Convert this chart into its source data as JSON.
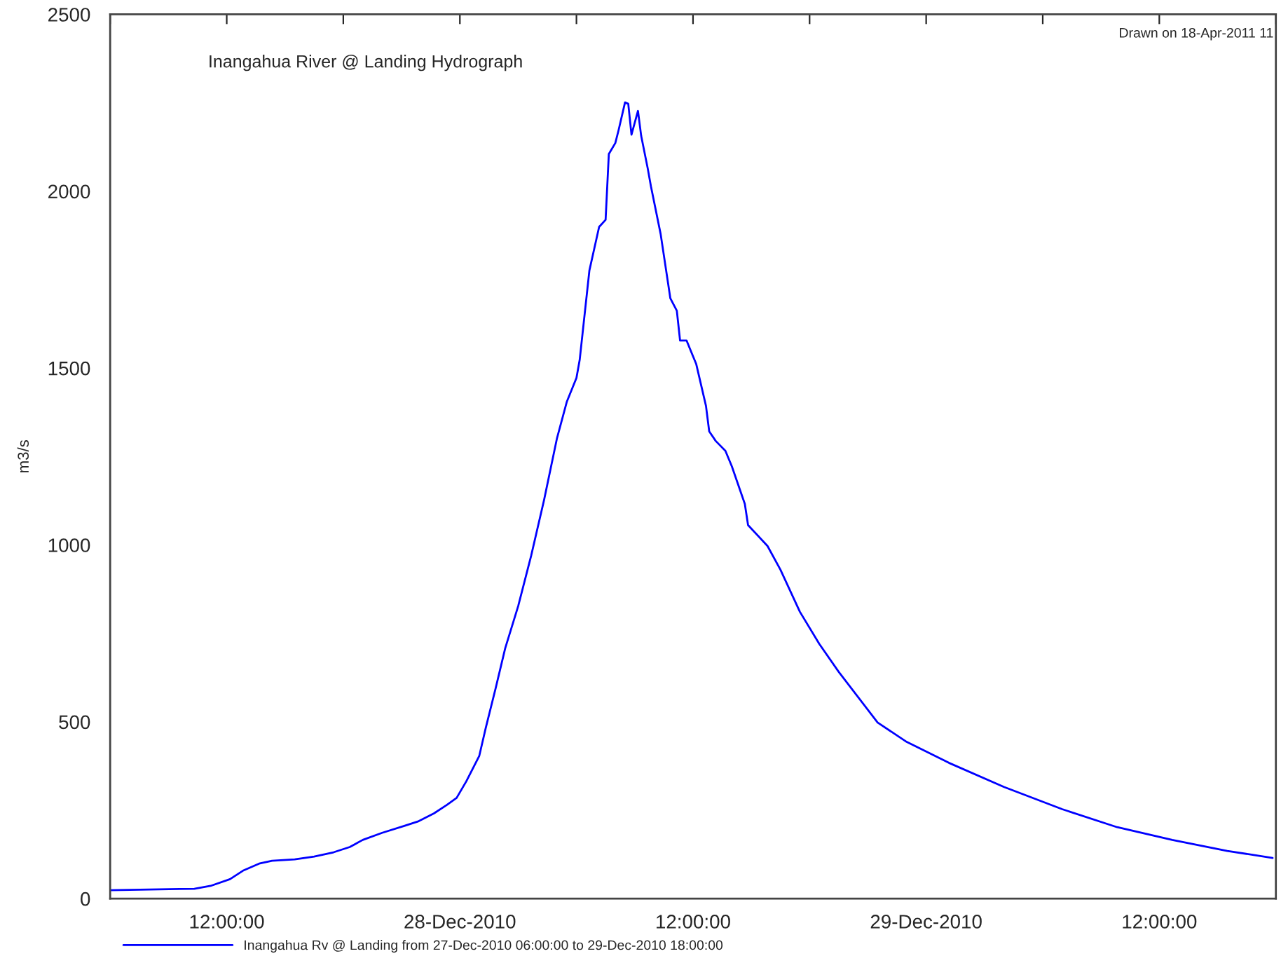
{
  "chart_data": {
    "type": "line",
    "title": "Inangahua River @ Landing Hydrograph",
    "ylabel": "m3/s",
    "annotations": [
      "Drawn on 18-Apr-2011 11"
    ],
    "x": [
      "2010-12-27T06:00",
      "2010-12-27T10:20",
      "2010-12-27T11:10",
      "2010-12-27T12:10",
      "2010-12-27T12:50",
      "2010-12-27T13:40",
      "2010-12-27T14:20",
      "2010-12-27T15:30",
      "2010-12-27T16:30",
      "2010-12-27T17:30",
      "2010-12-27T18:20",
      "2010-12-27T19:00",
      "2010-12-27T20:00",
      "2010-12-27T21:10",
      "2010-12-27T21:50",
      "2010-12-27T22:40",
      "2010-12-27T23:20",
      "2010-12-27T23:50",
      "2010-12-28T00:20",
      "2010-12-28T01:00",
      "2010-12-28T01:20",
      "2010-12-28T01:50",
      "2010-12-28T02:20",
      "2010-12-28T03:00",
      "2010-12-28T03:40",
      "2010-12-28T04:20",
      "2010-12-28T05:00",
      "2010-12-28T05:30",
      "2010-12-28T06:00",
      "2010-12-28T06:10",
      "2010-12-28T06:40",
      "2010-12-28T07:10",
      "2010-12-28T07:30",
      "2010-12-28T07:40",
      "2010-12-28T08:00",
      "2010-12-28T08:10",
      "2010-12-28T08:30",
      "2010-12-28T08:40",
      "2010-12-28T08:50",
      "2010-12-28T09:10",
      "2010-12-28T09:20",
      "2010-12-28T09:40",
      "2010-12-28T09:50",
      "2010-12-28T10:20",
      "2010-12-28T10:50",
      "2010-12-28T11:10",
      "2010-12-28T11:20",
      "2010-12-28T11:40",
      "2010-12-28T12:10",
      "2010-12-28T12:40",
      "2010-12-28T12:50",
      "2010-12-28T13:10",
      "2010-12-28T13:40",
      "2010-12-28T14:00",
      "2010-12-28T14:40",
      "2010-12-28T14:50",
      "2010-12-28T15:50",
      "2010-12-28T16:30",
      "2010-12-28T17:30",
      "2010-12-28T18:30",
      "2010-12-28T19:30",
      "2010-12-28T21:30",
      "2010-12-28T23:00",
      "2010-12-29T01:10",
      "2010-12-29T04:00",
      "2010-12-29T07:00",
      "2010-12-29T09:50",
      "2010-12-29T12:40",
      "2010-12-29T15:30",
      "2010-12-29T17:50"
    ],
    "series": [
      {
        "name": "Inangahua Rv @ Landing from 27-Dec-2010 06:00:00 to 29-Dec-2010 18:00:00",
        "color": "#0000ff",
        "values": [
          24,
          28,
          36,
          55,
          79,
          99,
          107,
          111,
          119,
          131,
          146,
          166,
          186,
          206,
          218,
          241,
          265,
          285,
          332,
          404,
          483,
          593,
          708,
          827,
          969,
          1127,
          1302,
          1404,
          1472,
          1523,
          1776,
          1899,
          1919,
          2105,
          2136,
          2172,
          2251,
          2247,
          2160,
          2227,
          2156,
          2065,
          2014,
          1879,
          1697,
          1662,
          1578,
          1578,
          1511,
          1393,
          1321,
          1294,
          1266,
          1222,
          1116,
          1056,
          997,
          930,
          811,
          720,
          641,
          498,
          443,
          384,
          316,
          253,
          202,
          166,
          135,
          115
        ]
      }
    ],
    "xlim": [
      "2010-12-27T06:00",
      "2010-12-29T18:00"
    ],
    "xticks": [
      {
        "value": "2010-12-27T06:00",
        "label": null
      },
      {
        "value": "2010-12-27T12:00",
        "label": "12:00:00"
      },
      {
        "value": "2010-12-27T18:00",
        "label": null
      },
      {
        "value": "2010-12-28T00:00",
        "label": "28-Dec-2010"
      },
      {
        "value": "2010-12-28T06:00",
        "label": null
      },
      {
        "value": "2010-12-28T12:00",
        "label": "12:00:00"
      },
      {
        "value": "2010-12-28T18:00",
        "label": null
      },
      {
        "value": "2010-12-29T00:00",
        "label": "29-Dec-2010"
      },
      {
        "value": "2010-12-29T06:00",
        "label": null
      },
      {
        "value": "2010-12-29T12:00",
        "label": "12:00:00"
      },
      {
        "value": "2010-12-29T18:00",
        "label": null
      }
    ],
    "ylim": [
      0,
      2500
    ],
    "yticks": [
      0,
      500,
      1000,
      1500,
      2000,
      2500
    ],
    "grid": false,
    "legend": "bottom",
    "line_style": "solid",
    "marker": "none"
  }
}
